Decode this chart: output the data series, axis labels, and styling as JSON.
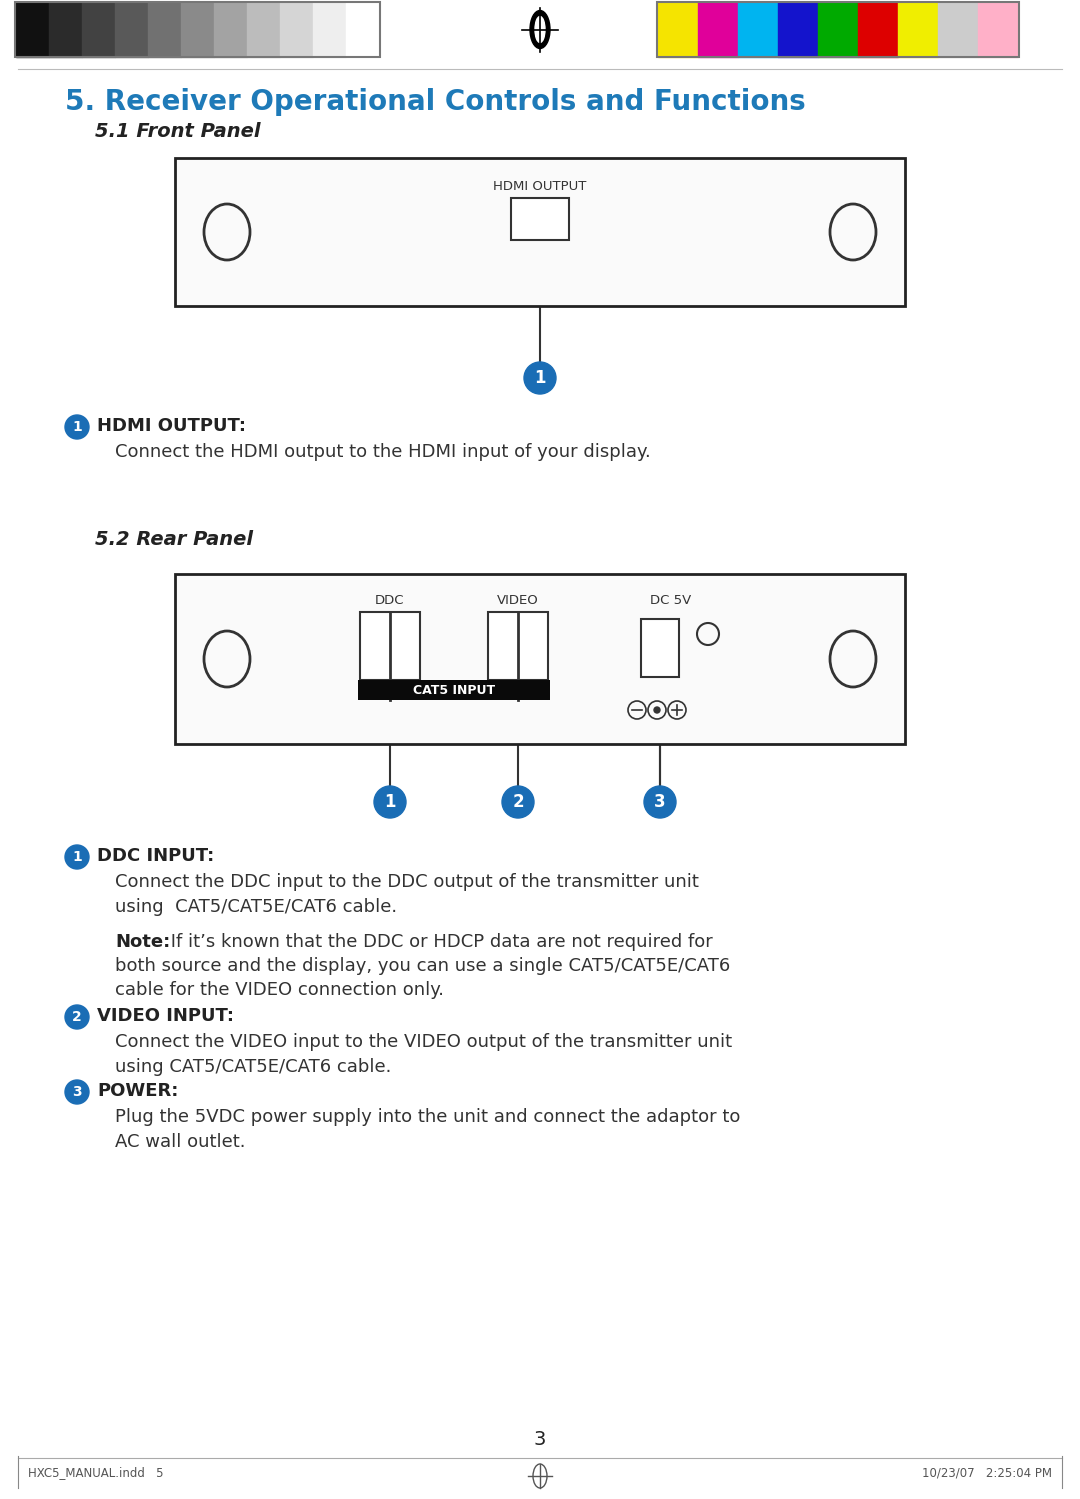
{
  "title_heading": "5. Receiver Operational Controls and Functions",
  "title_heading_color": "#1e7ab8",
  "section51": "5.1 Front Panel",
  "section52": "5.2 Rear Panel",
  "bg_color": "#ffffff",
  "top_bar_gray_colors": [
    "#111111",
    "#2b2b2b",
    "#424242",
    "#595959",
    "#717171",
    "#8a8a8a",
    "#a3a3a3",
    "#bcbcbc",
    "#d5d5d5",
    "#eeeeee",
    "#ffffff"
  ],
  "top_bar_color_colors": [
    "#f5e400",
    "#e0009a",
    "#00b4f0",
    "#1414cc",
    "#00aa00",
    "#dd0000",
    "#f0ee00",
    "#cccccc",
    "#ffb0c8"
  ],
  "page_number": "3",
  "footer_left": "HXC5_MANUAL.indd   5",
  "footer_right": "10/23/07   2:25:04 PM",
  "circle_color": "#1a6db5",
  "circle_text_color": "#ffffff",
  "panel_edge_color": "#222222",
  "port_edge_color": "#333333",
  "line_color": "#333333",
  "text_color": "#222222",
  "desc_color": "#333333",
  "label1_hdmi": "HDMI OUTPUT:",
  "label1_hdmi_desc": "Connect the HDMI output to the HDMI input of your display.",
  "label1_ddc": "DDC INPUT:",
  "label1_ddc_desc1": "Connect the DDC input to the DDC output of the transmitter unit",
  "label1_ddc_desc2": "using  CAT5/CAT5E/CAT6 cable.",
  "note_bold": "Note:",
  "note_line1": " If it’s known that the DDC or HDCP data are not required for",
  "note_line2": "both source and the display, you can use a single CAT5/CAT5E/CAT6",
  "note_line3": "cable for the VIDEO connection only.",
  "label2_video": "VIDEO INPUT:",
  "label2_video_desc1": "Connect the VIDEO input to the VIDEO output of the transmitter unit",
  "label2_video_desc2": "using CAT5/CAT5E/CAT6 cable.",
  "label3_power": "POWER:",
  "label3_power_desc1": "Plug the 5VDC power supply into the unit and connect the adaptor to",
  "label3_power_desc2": "AC wall outlet."
}
